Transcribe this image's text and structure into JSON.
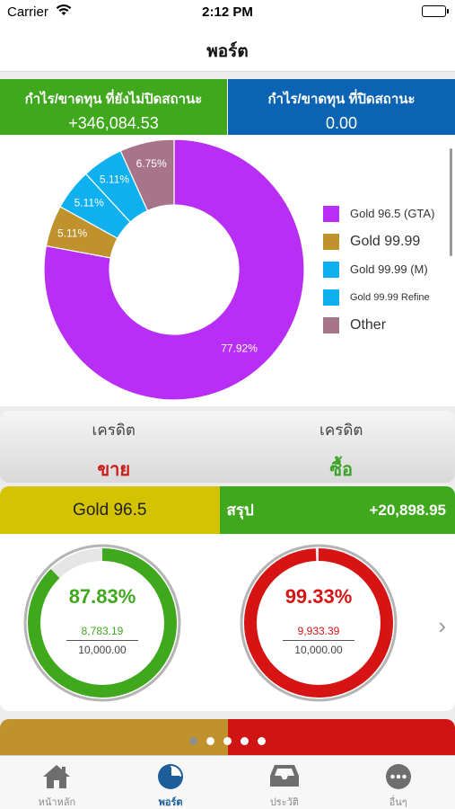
{
  "status_bar": {
    "carrier": "Carrier",
    "time": "2:12 PM"
  },
  "nav": {
    "title": "พอร์ต"
  },
  "profit_loss": {
    "unrealized": {
      "label": "กำไร/ขาดทุน ที่ยังไม่ปิดสถานะ",
      "value": "+346,084.53",
      "color": "#3fa81c"
    },
    "realized": {
      "label": "กำไร/ขาดทุน ที่ปิดสถานะ",
      "value": "0.00",
      "color": "#0b63b4"
    }
  },
  "chart_data": {
    "type": "pie",
    "donut": true,
    "title": "",
    "slices": [
      {
        "label": "Gold 96.5 (GTA)",
        "value": 77.92,
        "display": "77.92%",
        "color": "#b82ef5"
      },
      {
        "label": "Gold 99.99",
        "value": 5.11,
        "display": "5.11%",
        "color": "#c0922c"
      },
      {
        "label": "Gold 99.99 (M)",
        "value": 5.11,
        "display": "5.11%",
        "color": "#0fb0f0"
      },
      {
        "label": "Gold 99.99 Refine",
        "value": 5.11,
        "display": "5.11%",
        "color": "#0fb0f0"
      },
      {
        "label": "Other",
        "value": 6.75,
        "display": "6.75%",
        "color": "#a8748a"
      }
    ],
    "legend_position": "right"
  },
  "credit": [
    {
      "label": "เครดิต",
      "action": "ขาย"
    },
    {
      "label": "เครดิต",
      "action": "ซื้อ"
    }
  ],
  "portfolio_card": {
    "name": "Gold 96.5",
    "summary_label": "สรุป",
    "summary_value": "+20,898.95",
    "gauges": [
      {
        "percent": "87.83%",
        "fraction": 0.8783,
        "numerator": "8,783.19",
        "denominator": "10,000.00",
        "color": "#3fa81c"
      },
      {
        "percent": "99.33%",
        "fraction": 0.9933,
        "numerator": "9,933.39",
        "denominator": "10,000.00",
        "color": "#d61414"
      }
    ]
  },
  "pager": {
    "pages": 5,
    "current": 1
  },
  "tabs": [
    {
      "label": "หน้าหลัก",
      "icon": "home-icon",
      "active": false
    },
    {
      "label": "พอร์ต",
      "icon": "pie-chart-icon",
      "active": true
    },
    {
      "label": "ประวัติ",
      "icon": "inbox-tray-icon",
      "active": false
    },
    {
      "label": "อื่นๆ",
      "icon": "more-dots-icon",
      "active": false
    }
  ]
}
